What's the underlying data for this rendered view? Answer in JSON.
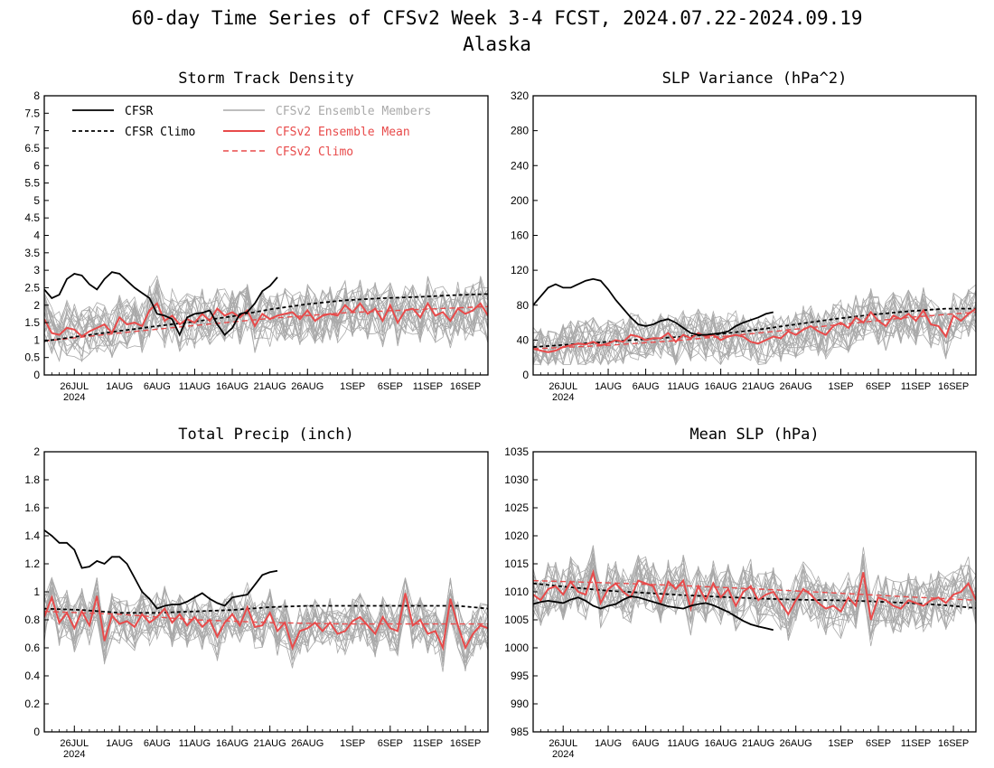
{
  "figure": {
    "title": "60-day Time Series of CFSv2 Week 3-4 FCST, 2024.07.22-2024.09.19",
    "subtitle": "Alaska"
  },
  "x_axis_ticks": [
    {
      "day": 4,
      "label": "26JUL",
      "sublabel": "2024"
    },
    {
      "day": 10,
      "label": "1AUG"
    },
    {
      "day": 15,
      "label": "6AUG"
    },
    {
      "day": 20,
      "label": "11AUG"
    },
    {
      "day": 25,
      "label": "16AUG"
    },
    {
      "day": 30,
      "label": "21AUG"
    },
    {
      "day": 35,
      "label": "26AUG"
    },
    {
      "day": 41,
      "label": "1SEP"
    },
    {
      "day": 46,
      "label": "6SEP"
    },
    {
      "day": 51,
      "label": "11SEP"
    },
    {
      "day": 56,
      "label": "16SEP"
    }
  ],
  "colors": {
    "cfsr": "#000000",
    "ensemble_members": "#a9a9a9",
    "ensemble_mean": "#e84a4a",
    "cfsv2_climo": "#e84a4a"
  },
  "chart_data": [
    {
      "id": "storm-track",
      "type": "line",
      "title": "Storm Track Density",
      "ylim": [
        0,
        8
      ],
      "yticks": [
        "0",
        "0.5",
        "1",
        "1.5",
        "2",
        "2.5",
        "3",
        "3.5",
        "4",
        "4.5",
        "5",
        "5.5",
        "6",
        "6.5",
        "7",
        "7.5",
        "8"
      ],
      "xlim": [
        0,
        59
      ],
      "legend": {
        "placement": "top-left",
        "entries": [
          {
            "label": "CFSR",
            "series": "cfsr"
          },
          {
            "label": "CFSR Climo",
            "series": "cfsr_climo"
          },
          {
            "label": "CFSv2 Ensemble Members",
            "series": "members"
          },
          {
            "label": "CFSv2 Ensemble Mean",
            "series": "mean"
          },
          {
            "label": "CFSv2 Climo",
            "series": "cfsv2_climo"
          }
        ]
      },
      "cfsr": {
        "x": [
          0,
          1,
          2,
          3,
          4,
          5,
          6,
          7,
          8,
          9,
          10,
          11,
          12,
          13,
          14,
          15,
          16,
          17,
          18,
          19,
          20,
          21,
          22,
          23,
          24,
          25,
          26,
          27,
          28,
          29,
          30,
          31
        ],
        "values": [
          2.45,
          2.2,
          2.3,
          2.75,
          2.9,
          2.85,
          2.6,
          2.45,
          2.75,
          2.95,
          2.9,
          2.7,
          2.5,
          2.35,
          2.2,
          1.75,
          1.7,
          1.6,
          1.15,
          1.65,
          1.75,
          1.78,
          1.85,
          1.45,
          1.15,
          1.35,
          1.75,
          1.8,
          2.05,
          2.4,
          2.55,
          2.8
        ]
      },
      "cfsr_climo": {
        "x": [
          0,
          5,
          10,
          15,
          20,
          25,
          30,
          35,
          40,
          45,
          50,
          55,
          59
        ],
        "values": [
          0.97,
          1.12,
          1.26,
          1.4,
          1.53,
          1.68,
          1.88,
          2.03,
          2.14,
          2.2,
          2.24,
          2.29,
          2.32
        ]
      },
      "cfsv2_climo": {
        "x": [
          0,
          10,
          20,
          30,
          40,
          50,
          59
        ],
        "values": [
          0.97,
          1.2,
          1.42,
          1.62,
          1.78,
          1.88,
          1.96
        ]
      },
      "mean": {
        "x": [
          0,
          1,
          2,
          3,
          4,
          5,
          6,
          7,
          8,
          9,
          10,
          11,
          12,
          13,
          14,
          15,
          16,
          17,
          18,
          19,
          20,
          21,
          22,
          23,
          24,
          25,
          26,
          27,
          28,
          29,
          30,
          31,
          32,
          33,
          34,
          35,
          36,
          37,
          38,
          39,
          40,
          41,
          42,
          43,
          44,
          45,
          46,
          47,
          48,
          49,
          50,
          51,
          52,
          53,
          54,
          55,
          56,
          57,
          58,
          59
        ],
        "values": [
          1.6,
          1.2,
          1.15,
          1.35,
          1.3,
          1.1,
          1.25,
          1.35,
          1.45,
          1.2,
          1.65,
          1.45,
          1.5,
          1.4,
          1.85,
          2.05,
          1.55,
          1.7,
          1.45,
          1.6,
          1.5,
          1.75,
          1.55,
          1.9,
          1.7,
          1.8,
          1.65,
          1.85,
          1.4,
          1.75,
          1.6,
          1.7,
          1.75,
          1.8,
          1.6,
          1.85,
          1.55,
          1.7,
          1.75,
          1.7,
          2.0,
          1.8,
          2.05,
          1.75,
          1.9,
          1.55,
          2.0,
          1.5,
          1.85,
          1.9,
          1.65,
          2.05,
          1.7,
          1.8,
          1.55,
          1.9,
          1.75,
          1.85,
          2.05,
          1.7
        ]
      },
      "members_spread": [
        0.1,
        3.7
      ]
    },
    {
      "id": "slp-variance",
      "type": "line",
      "title": "SLP Variance (hPa^2)",
      "ylim": [
        0,
        320
      ],
      "yticks": [
        "0",
        "40",
        "80",
        "120",
        "160",
        "200",
        "240",
        "280",
        "320"
      ],
      "xlim": [
        0,
        59
      ],
      "cfsr": {
        "x": [
          0,
          1,
          2,
          3,
          4,
          5,
          6,
          7,
          8,
          9,
          10,
          11,
          12,
          13,
          14,
          15,
          16,
          17,
          18,
          19,
          20,
          21,
          22,
          23,
          24,
          25,
          26,
          27,
          28,
          29,
          30,
          31,
          32
        ],
        "values": [
          80,
          90,
          100,
          104,
          100,
          100,
          104,
          108,
          110,
          108,
          98,
          86,
          76,
          66,
          58,
          56,
          58,
          62,
          64,
          60,
          54,
          48,
          46,
          46,
          47,
          48,
          50,
          56,
          60,
          63,
          66,
          70,
          72
        ]
      },
      "cfsr_climo": {
        "x": [
          0,
          5,
          10,
          15,
          20,
          25,
          30,
          35,
          40,
          45,
          50,
          55,
          59
        ],
        "values": [
          32,
          35,
          38,
          41,
          44,
          47,
          52,
          58,
          64,
          69,
          73,
          76,
          76
        ]
      },
      "cfsv2_climo": {
        "x": [
          0,
          10,
          20,
          30,
          40,
          50,
          59
        ],
        "values": [
          30,
          34,
          40,
          48,
          57,
          66,
          72
        ]
      },
      "mean": {
        "x": [
          0,
          1,
          2,
          3,
          4,
          5,
          6,
          7,
          8,
          9,
          10,
          11,
          12,
          13,
          14,
          15,
          16,
          17,
          18,
          19,
          20,
          21,
          22,
          23,
          24,
          25,
          26,
          27,
          28,
          29,
          30,
          31,
          32,
          33,
          34,
          35,
          36,
          37,
          38,
          39,
          40,
          41,
          42,
          43,
          44,
          45,
          46,
          47,
          48,
          49,
          50,
          51,
          52,
          53,
          54,
          55,
          56,
          57,
          58,
          59
        ],
        "values": [
          30,
          28,
          26,
          28,
          32,
          34,
          36,
          35,
          38,
          34,
          36,
          40,
          38,
          46,
          44,
          40,
          42,
          42,
          48,
          38,
          46,
          42,
          48,
          44,
          46,
          40,
          44,
          46,
          44,
          38,
          36,
          40,
          44,
          42,
          50,
          46,
          52,
          56,
          50,
          46,
          56,
          60,
          54,
          66,
          60,
          72,
          62,
          56,
          68,
          64,
          70,
          62,
          74,
          58,
          56,
          44,
          68,
          62,
          70,
          76
        ]
      },
      "members_spread": [
        12,
        140
      ]
    },
    {
      "id": "total-precip",
      "type": "line",
      "title": "Total Precip (inch)",
      "ylim": [
        0,
        2
      ],
      "yticks": [
        "0",
        "0.2",
        "0.4",
        "0.6",
        "0.8",
        "1",
        "1.2",
        "1.4",
        "1.6",
        "1.8",
        "2"
      ],
      "xlim": [
        0,
        59
      ],
      "cfsr": {
        "x": [
          0,
          1,
          2,
          3,
          4,
          5,
          6,
          7,
          8,
          9,
          10,
          11,
          12,
          13,
          14,
          15,
          16,
          17,
          18,
          19,
          20,
          21,
          22,
          23,
          24,
          25,
          26,
          27,
          28,
          29,
          30,
          31
        ],
        "values": [
          1.44,
          1.4,
          1.35,
          1.35,
          1.3,
          1.17,
          1.18,
          1.22,
          1.2,
          1.25,
          1.25,
          1.2,
          1.1,
          1.0,
          0.95,
          0.88,
          0.9,
          0.91,
          0.91,
          0.93,
          0.96,
          0.99,
          0.95,
          0.92,
          0.9,
          0.96,
          0.97,
          0.98,
          1.05,
          1.12,
          1.14,
          1.15
        ]
      },
      "cfsr_climo": {
        "x": [
          0,
          5,
          10,
          15,
          20,
          25,
          30,
          35,
          40,
          45,
          50,
          55,
          59
        ],
        "values": [
          0.88,
          0.87,
          0.85,
          0.85,
          0.86,
          0.87,
          0.89,
          0.9,
          0.9,
          0.9,
          0.9,
          0.9,
          0.88
        ]
      },
      "cfsv2_climo": {
        "x": [
          0,
          10,
          20,
          30,
          40,
          50,
          59
        ],
        "values": [
          0.86,
          0.84,
          0.8,
          0.78,
          0.77,
          0.77,
          0.77
        ]
      },
      "mean": {
        "x": [
          0,
          1,
          2,
          3,
          4,
          5,
          6,
          7,
          8,
          9,
          10,
          11,
          12,
          13,
          14,
          15,
          16,
          17,
          18,
          19,
          20,
          21,
          22,
          23,
          24,
          25,
          26,
          27,
          28,
          29,
          30,
          31,
          32,
          33,
          34,
          35,
          36,
          37,
          38,
          39,
          40,
          41,
          42,
          43,
          44,
          45,
          46,
          47,
          48,
          49,
          50,
          51,
          52,
          53,
          54,
          55,
          56,
          57,
          58,
          59
        ],
        "values": [
          0.82,
          0.96,
          0.78,
          0.85,
          0.74,
          0.86,
          0.76,
          0.97,
          0.65,
          0.83,
          0.77,
          0.79,
          0.75,
          0.84,
          0.78,
          0.82,
          0.88,
          0.78,
          0.84,
          0.76,
          0.82,
          0.75,
          0.8,
          0.68,
          0.78,
          0.84,
          0.76,
          0.89,
          0.75,
          0.76,
          0.85,
          0.72,
          0.78,
          0.6,
          0.72,
          0.74,
          0.78,
          0.72,
          0.78,
          0.7,
          0.72,
          0.79,
          0.82,
          0.76,
          0.7,
          0.82,
          0.74,
          0.72,
          0.99,
          0.76,
          0.8,
          0.7,
          0.72,
          0.6,
          0.95,
          0.76,
          0.6,
          0.7,
          0.76,
          0.74
        ]
      },
      "members_spread": [
        0.3,
        1.1
      ]
    },
    {
      "id": "mean-slp",
      "type": "line",
      "title": "Mean SLP (hPa)",
      "ylim": [
        985,
        1035
      ],
      "yticks": [
        "985",
        "990",
        "995",
        "1000",
        "1005",
        "1010",
        "1015",
        "1020",
        "1025",
        "1030",
        "1035"
      ],
      "xlim": [
        0,
        59
      ],
      "cfsr": {
        "x": [
          0,
          1,
          2,
          3,
          4,
          5,
          6,
          7,
          8,
          9,
          10,
          11,
          12,
          13,
          14,
          15,
          16,
          17,
          18,
          19,
          20,
          21,
          22,
          23,
          24,
          25,
          26,
          27,
          28,
          29,
          30,
          31,
          32
        ],
        "values": [
          1007.8,
          1008.2,
          1008.4,
          1008.2,
          1008.0,
          1008.6,
          1009.0,
          1008.4,
          1007.5,
          1007.0,
          1007.5,
          1007.8,
          1008.6,
          1009.2,
          1009.0,
          1008.6,
          1008.2,
          1007.8,
          1007.4,
          1007.2,
          1007.0,
          1007.5,
          1007.8,
          1008.0,
          1007.6,
          1007.0,
          1006.4,
          1005.6,
          1004.8,
          1004.2,
          1003.8,
          1003.5,
          1003.2
        ]
      },
      "cfsr_climo": {
        "x": [
          0,
          5,
          10,
          15,
          20,
          25,
          30,
          35,
          40,
          45,
          50,
          55,
          59
        ],
        "values": [
          1011.5,
          1010.8,
          1010.2,
          1009.8,
          1009.4,
          1009.1,
          1008.8,
          1008.6,
          1008.5,
          1008.3,
          1008.0,
          1007.6,
          1007.1
        ]
      },
      "cfsv2_climo": {
        "x": [
          0,
          10,
          20,
          30,
          40,
          50,
          59
        ],
        "values": [
          1012.0,
          1011.6,
          1011.1,
          1010.5,
          1009.8,
          1009.1,
          1008.5
        ]
      },
      "mean": {
        "x": [
          0,
          1,
          2,
          3,
          4,
          5,
          6,
          7,
          8,
          9,
          10,
          11,
          12,
          13,
          14,
          15,
          16,
          17,
          18,
          19,
          20,
          21,
          22,
          23,
          24,
          25,
          26,
          27,
          28,
          29,
          30,
          31,
          32,
          33,
          34,
          35,
          36,
          37,
          38,
          39,
          40,
          41,
          42,
          43,
          44,
          45,
          46,
          47,
          48,
          49,
          50,
          51,
          52,
          53,
          54,
          55,
          56,
          57,
          58,
          59
        ],
        "values": [
          1009.5,
          1008.5,
          1010.5,
          1011.0,
          1009.5,
          1011.8,
          1010.0,
          1009.5,
          1013.5,
          1008.0,
          1010.5,
          1011.5,
          1010.0,
          1009.0,
          1012.0,
          1011.5,
          1011.0,
          1008.0,
          1011.8,
          1010.5,
          1012.0,
          1007.0,
          1011.0,
          1008.5,
          1011.5,
          1009.0,
          1010.5,
          1007.5,
          1010.0,
          1011.0,
          1008.5,
          1009.5,
          1010.0,
          1008.0,
          1006.0,
          1008.5,
          1010.5,
          1009.5,
          1008.0,
          1007.0,
          1007.5,
          1006.5,
          1009.0,
          1007.5,
          1013.5,
          1005.0,
          1009.0,
          1008.5,
          1007.5,
          1007.0,
          1008.5,
          1008.0,
          1007.5,
          1008.5,
          1009.0,
          1008.0,
          1009.5,
          1010.0,
          1011.5,
          1008.5
        ]
      },
      "members_spread": [
        999,
        1021
      ]
    }
  ]
}
